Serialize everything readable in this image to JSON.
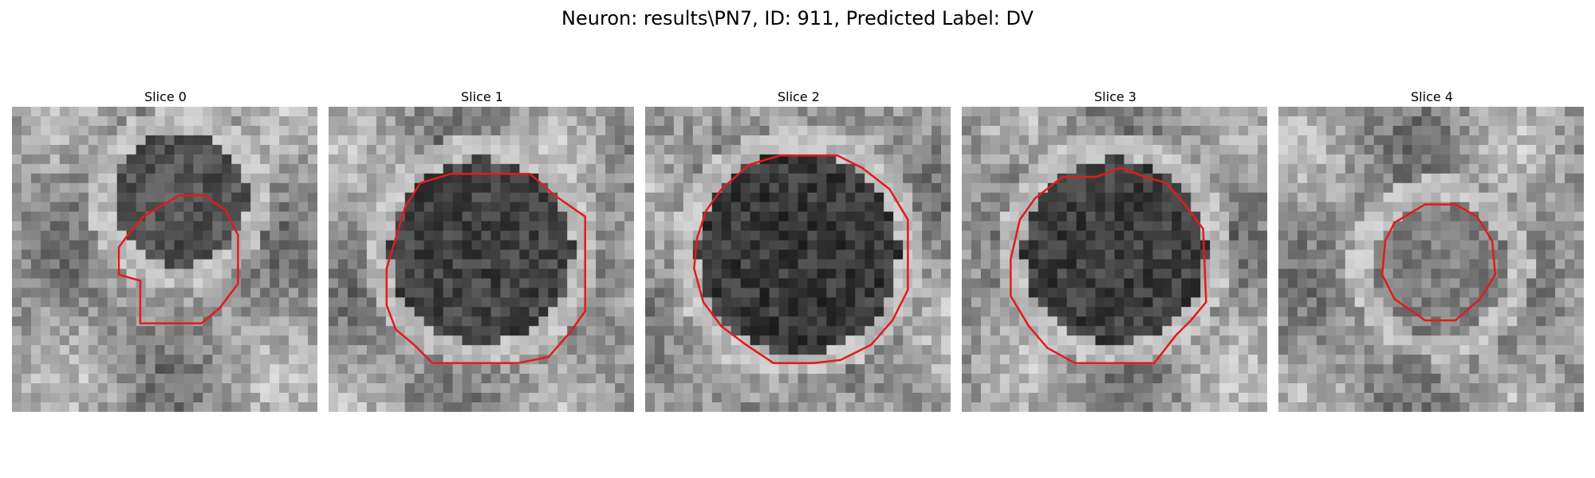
{
  "figure": {
    "title": "Neuron: results\\PN7, ID: 911, Predicted Label: DV"
  },
  "colors": {
    "contour": "#e41a1c",
    "background": "#ffffff"
  },
  "slices": [
    {
      "title": "Slice 0"
    },
    {
      "title": "Slice 1"
    },
    {
      "title": "Slice 2"
    },
    {
      "title": "Slice 3"
    },
    {
      "title": "Slice 4"
    }
  ]
}
